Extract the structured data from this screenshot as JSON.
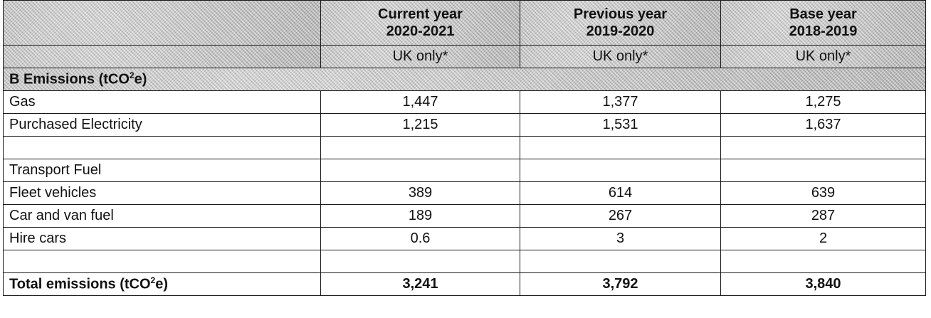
{
  "columns": [
    {
      "title": "Current year",
      "period": "2020-2021",
      "scope": "UK only*"
    },
    {
      "title": "Previous year",
      "period": "2019-2020",
      "scope": "UK only*"
    },
    {
      "title": "Base year",
      "period": "2018-2019",
      "scope": "UK only*"
    }
  ],
  "section": {
    "label_prefix": "B Emissions (tCO",
    "label_sup": "2",
    "label_suffix": "e)"
  },
  "rows": [
    {
      "label": "Gas",
      "values": [
        "1,447",
        "1,377",
        "1,275"
      ]
    },
    {
      "label": "Purchased Electricity",
      "values": [
        "1,215",
        "1,531",
        "1,637"
      ]
    },
    {
      "label": "",
      "values": [
        "",
        "",
        ""
      ]
    },
    {
      "label": "Transport Fuel",
      "values": [
        "",
        "",
        ""
      ]
    },
    {
      "label": "Fleet vehicles",
      "values": [
        "389",
        "614",
        "639"
      ]
    },
    {
      "label": "Car and van fuel",
      "values": [
        "189",
        "267",
        "287"
      ]
    },
    {
      "label": "Hire cars",
      "values": [
        "0.6",
        "3",
        "2"
      ]
    },
    {
      "label": "",
      "values": [
        "",
        "",
        ""
      ]
    }
  ],
  "total": {
    "label_prefix": "Total emissions (tCO",
    "label_sup": "2",
    "label_suffix": "e)",
    "values": [
      "3,241",
      "3,792",
      "3,840"
    ]
  }
}
